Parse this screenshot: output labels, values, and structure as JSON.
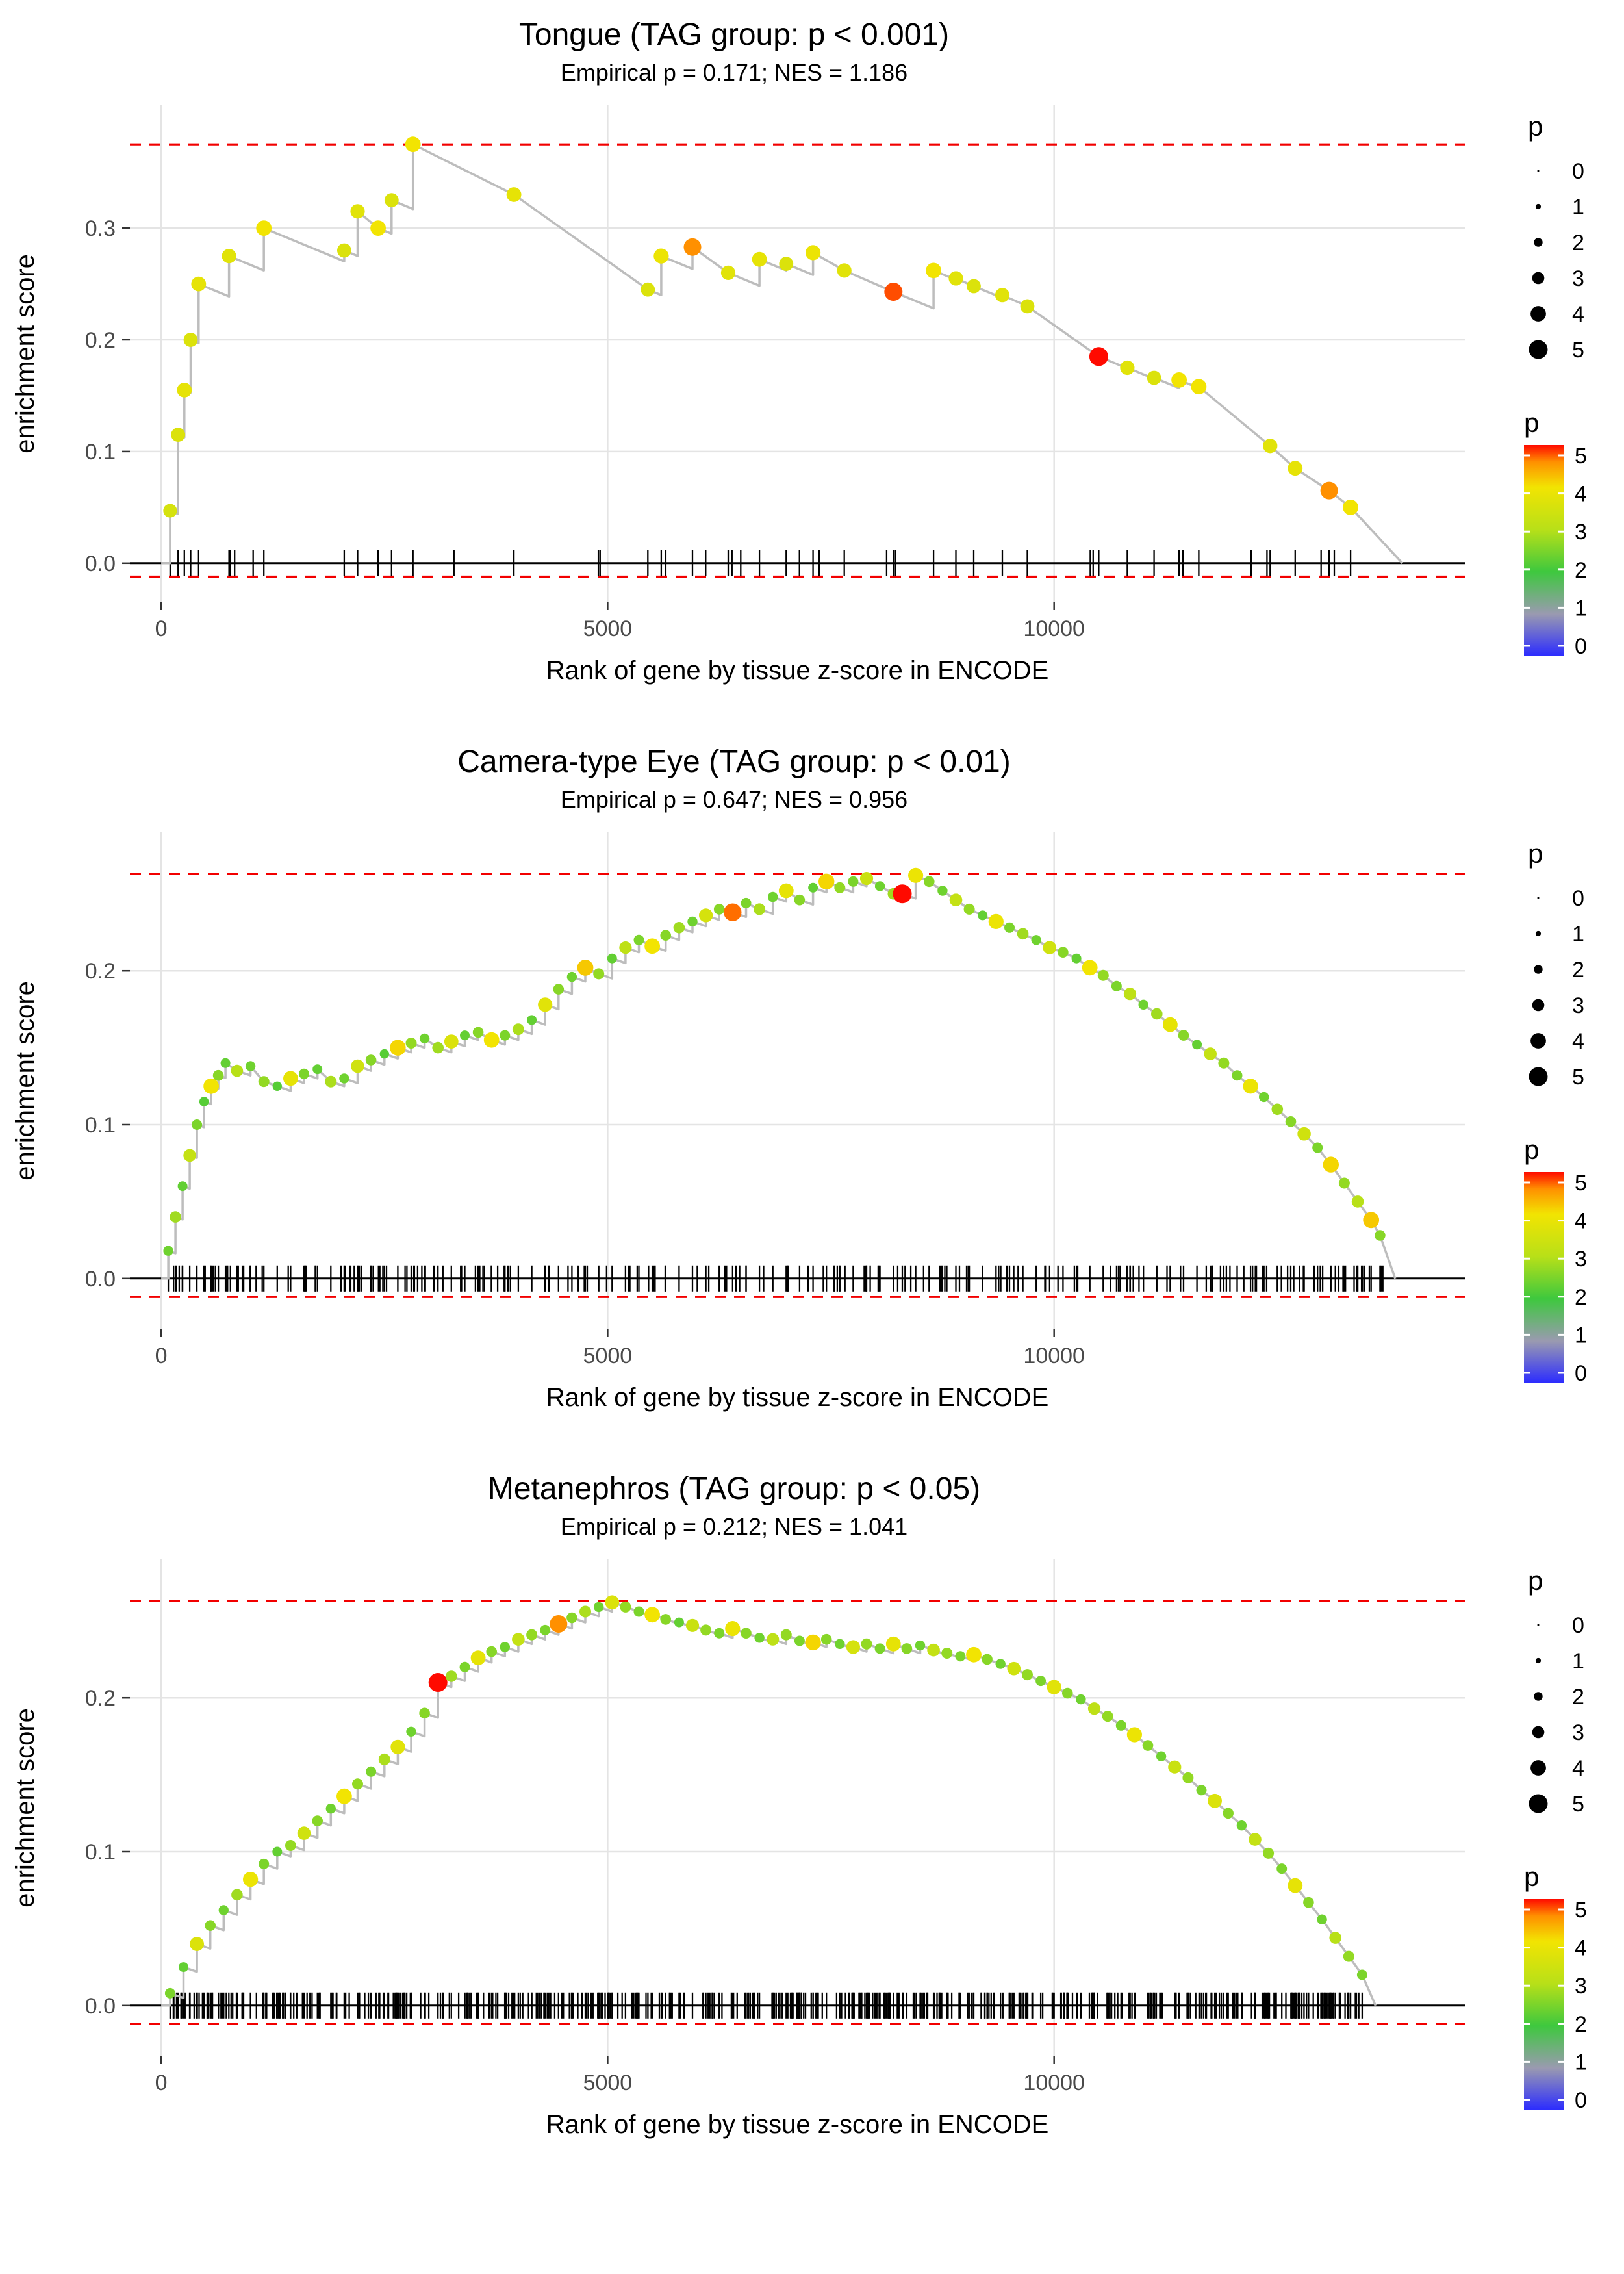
{
  "page": {
    "background": "#ffffff"
  },
  "style_colors": {
    "ref_line": "#f20000",
    "curve": "#bdbdbd",
    "grid": "#e4e4e4",
    "tick_text": "#4a4a4a",
    "rug": "#000000"
  },
  "legend": {
    "size_title": "p",
    "size_values": [
      0,
      1,
      2,
      3,
      4,
      5
    ],
    "size_labels": [
      "0",
      "1",
      "2",
      "3",
      "4",
      "5"
    ],
    "color_title": "p",
    "color_labels": [
      "5",
      "4",
      "3",
      "2",
      "1",
      "0"
    ],
    "gradient_stops": [
      [
        0,
        "#2b2bff"
      ],
      [
        0.2,
        "#9a9ab0"
      ],
      [
        0.4,
        "#3ec83e"
      ],
      [
        0.6,
        "#b8e018"
      ],
      [
        0.8,
        "#f2e402"
      ],
      [
        0.92,
        "#ff9000"
      ],
      [
        1,
        "#ff0a00"
      ]
    ]
  },
  "chart_data": [
    {
      "type": "line",
      "title": "Tongue (TAG group: p < 0.001)",
      "subtitle": "Empirical p = 0.171; NES = 1.186",
      "xlabel": "Rank of gene by tissue z-score in ENCODE",
      "ylabel": "enrichment score",
      "xlim": [
        -350,
        14600
      ],
      "ylim": [
        -0.035,
        0.41
      ],
      "xticks": [
        0,
        5000,
        10000
      ],
      "yticks": [
        0.0,
        0.1,
        0.2,
        0.3
      ],
      "ref_top": 0.375,
      "ref_bottom": -0.012,
      "x_end": 13900,
      "decay_per_rank": 3.3e-05,
      "rug": {
        "count": 22,
        "xmin": 120,
        "xmax": 13350,
        "seed": 7
      },
      "points": [
        [
          100,
          0.047,
          3.5
        ],
        [
          190,
          0.115,
          3.6
        ],
        [
          260,
          0.155,
          3.8
        ],
        [
          330,
          0.2,
          3.6
        ],
        [
          420,
          0.25,
          3.8
        ],
        [
          760,
          0.275,
          3.7
        ],
        [
          1150,
          0.3,
          4.0
        ],
        [
          2050,
          0.28,
          3.6
        ],
        [
          2200,
          0.315,
          3.7
        ],
        [
          2430,
          0.3,
          4.0
        ],
        [
          2580,
          0.325,
          3.6
        ],
        [
          2820,
          0.375,
          4.0
        ],
        [
          3950,
          0.33,
          3.8
        ],
        [
          5450,
          0.245,
          3.6
        ],
        [
          5600,
          0.275,
          3.9
        ],
        [
          5950,
          0.283,
          4.6
        ],
        [
          6350,
          0.26,
          3.7
        ],
        [
          6700,
          0.272,
          3.8
        ],
        [
          7000,
          0.268,
          3.6
        ],
        [
          7300,
          0.278,
          3.9
        ],
        [
          7650,
          0.262,
          3.7
        ],
        [
          8200,
          0.243,
          4.8
        ],
        [
          8650,
          0.262,
          4.0
        ],
        [
          8900,
          0.255,
          3.7
        ],
        [
          9100,
          0.248,
          3.6
        ],
        [
          9420,
          0.24,
          3.7
        ],
        [
          9700,
          0.23,
          3.6
        ],
        [
          10500,
          0.185,
          5.0
        ],
        [
          10820,
          0.175,
          3.7
        ],
        [
          11120,
          0.166,
          3.6
        ],
        [
          11400,
          0.164,
          4.0
        ],
        [
          11620,
          0.158,
          4.0
        ],
        [
          12420,
          0.105,
          3.7
        ],
        [
          12700,
          0.085,
          3.8
        ],
        [
          13080,
          0.065,
          4.6
        ],
        [
          13320,
          0.05,
          4.0
        ]
      ]
    },
    {
      "type": "line",
      "title": "Camera-type Eye (TAG group: p < 0.01)",
      "subtitle": "Empirical p = 0.647; NES = 0.956",
      "xlabel": "Rank of gene by tissue z-score in ENCODE",
      "ylabel": "enrichment score",
      "xlim": [
        -350,
        14600
      ],
      "ylim": [
        -0.033,
        0.29
      ],
      "xticks": [
        0,
        5000,
        10000
      ],
      "yticks": [
        0.0,
        0.1,
        0.2
      ],
      "ref_top": 0.263,
      "ref_bottom": -0.012,
      "x_end": 13820,
      "decay_per_rank": 2e-05,
      "rug": {
        "count": 160,
        "xmin": 80,
        "xmax": 13700,
        "seed": 13
      },
      "points": [
        [
          80,
          0.018,
          2.4
        ],
        [
          160,
          0.04,
          2.8
        ],
        [
          240,
          0.06,
          2.3
        ],
        [
          320,
          0.08,
          3.2
        ],
        [
          400,
          0.1,
          2.5
        ],
        [
          480,
          0.115,
          2.2
        ],
        [
          560,
          0.125,
          4.0
        ],
        [
          640,
          0.132,
          2.6
        ],
        [
          720,
          0.14,
          2.3
        ],
        [
          850,
          0.135,
          3.0
        ],
        [
          1000,
          0.138,
          2.4
        ],
        [
          1150,
          0.128,
          2.7
        ],
        [
          1300,
          0.125,
          2.2
        ],
        [
          1450,
          0.13,
          3.8
        ],
        [
          1600,
          0.133,
          2.5
        ],
        [
          1750,
          0.136,
          2.3
        ],
        [
          1900,
          0.128,
          2.9
        ],
        [
          2050,
          0.13,
          2.4
        ],
        [
          2200,
          0.138,
          3.4
        ],
        [
          2350,
          0.142,
          2.6
        ],
        [
          2500,
          0.146,
          2.2
        ],
        [
          2650,
          0.15,
          4.1
        ],
        [
          2800,
          0.153,
          2.7
        ],
        [
          2950,
          0.156,
          2.4
        ],
        [
          3100,
          0.15,
          2.8
        ],
        [
          3250,
          0.154,
          3.6
        ],
        [
          3400,
          0.158,
          2.3
        ],
        [
          3550,
          0.16,
          2.6
        ],
        [
          3700,
          0.155,
          4.0
        ],
        [
          3850,
          0.158,
          2.5
        ],
        [
          4000,
          0.162,
          2.9
        ],
        [
          4150,
          0.168,
          2.3
        ],
        [
          4300,
          0.178,
          3.7
        ],
        [
          4450,
          0.188,
          2.6
        ],
        [
          4600,
          0.196,
          2.4
        ],
        [
          4750,
          0.202,
          4.2
        ],
        [
          4900,
          0.198,
          2.7
        ],
        [
          5050,
          0.208,
          2.3
        ],
        [
          5200,
          0.215,
          3.1
        ],
        [
          5350,
          0.22,
          2.5
        ],
        [
          5500,
          0.216,
          4.0
        ],
        [
          5650,
          0.223,
          2.6
        ],
        [
          5800,
          0.228,
          2.8
        ],
        [
          5950,
          0.232,
          2.4
        ],
        [
          6100,
          0.236,
          3.5
        ],
        [
          6250,
          0.24,
          2.6
        ],
        [
          6400,
          0.238,
          4.7
        ],
        [
          6550,
          0.244,
          2.5
        ],
        [
          6700,
          0.24,
          2.9
        ],
        [
          6850,
          0.248,
          2.4
        ],
        [
          7000,
          0.252,
          3.8
        ],
        [
          7150,
          0.246,
          2.6
        ],
        [
          7300,
          0.254,
          2.3
        ],
        [
          7450,
          0.258,
          4.1
        ],
        [
          7600,
          0.254,
          2.7
        ],
        [
          7750,
          0.258,
          2.5
        ],
        [
          7900,
          0.26,
          3.3
        ],
        [
          8050,
          0.255,
          2.4
        ],
        [
          8200,
          0.25,
          2.8
        ],
        [
          8300,
          0.25,
          5.0
        ],
        [
          8450,
          0.262,
          3.9
        ],
        [
          8600,
          0.258,
          2.6
        ],
        [
          8750,
          0.252,
          2.4
        ],
        [
          8900,
          0.246,
          3.2
        ],
        [
          9050,
          0.24,
          2.7
        ],
        [
          9200,
          0.236,
          2.3
        ],
        [
          9350,
          0.232,
          3.9
        ],
        [
          9500,
          0.228,
          2.5
        ],
        [
          9650,
          0.224,
          2.8
        ],
        [
          9800,
          0.22,
          2.4
        ],
        [
          9950,
          0.215,
          3.4
        ],
        [
          10100,
          0.212,
          2.6
        ],
        [
          10250,
          0.208,
          2.3
        ],
        [
          10400,
          0.202,
          4.0
        ],
        [
          10550,
          0.197,
          2.7
        ],
        [
          10700,
          0.19,
          2.5
        ],
        [
          10850,
          0.185,
          3.1
        ],
        [
          11000,
          0.178,
          2.4
        ],
        [
          11150,
          0.172,
          2.8
        ],
        [
          11300,
          0.165,
          3.8
        ],
        [
          11450,
          0.158,
          2.6
        ],
        [
          11600,
          0.152,
          2.3
        ],
        [
          11750,
          0.146,
          3.2
        ],
        [
          11900,
          0.14,
          2.7
        ],
        [
          12050,
          0.132,
          2.5
        ],
        [
          12200,
          0.125,
          3.9
        ],
        [
          12350,
          0.118,
          2.4
        ],
        [
          12500,
          0.11,
          2.8
        ],
        [
          12650,
          0.102,
          2.6
        ],
        [
          12800,
          0.094,
          3.4
        ],
        [
          12950,
          0.085,
          2.5
        ],
        [
          13100,
          0.074,
          4.1
        ],
        [
          13250,
          0.062,
          2.7
        ],
        [
          13400,
          0.05,
          3.0
        ],
        [
          13550,
          0.038,
          4.2
        ],
        [
          13650,
          0.028,
          2.6
        ]
      ]
    },
    {
      "type": "line",
      "title": "Metanephros (TAG group: p < 0.05)",
      "subtitle": "Empirical p = 0.212; NES = 1.041",
      "xlabel": "Rank of gene by tissue z-score in ENCODE",
      "ylabel": "enrichment score",
      "xlim": [
        -350,
        14600
      ],
      "ylim": [
        -0.033,
        0.29
      ],
      "xticks": [
        0,
        5000,
        10000
      ],
      "yticks": [
        0.0,
        0.1,
        0.2
      ],
      "ref_top": 0.263,
      "ref_bottom": -0.012,
      "x_end": 13600,
      "decay_per_rank": 2e-05,
      "rug": {
        "count": 430,
        "xmin": 90,
        "xmax": 13600,
        "seed": 29
      },
      "points": [
        [
          100,
          0.008,
          2.5
        ],
        [
          250,
          0.025,
          2.3
        ],
        [
          400,
          0.04,
          3.6
        ],
        [
          550,
          0.052,
          2.6
        ],
        [
          700,
          0.062,
          2.4
        ],
        [
          850,
          0.072,
          2.8
        ],
        [
          1000,
          0.082,
          3.9
        ],
        [
          1150,
          0.092,
          2.5
        ],
        [
          1300,
          0.1,
          2.3
        ],
        [
          1450,
          0.104,
          2.7
        ],
        [
          1600,
          0.112,
          3.4
        ],
        [
          1750,
          0.12,
          2.6
        ],
        [
          1900,
          0.128,
          2.4
        ],
        [
          2050,
          0.136,
          4.0
        ],
        [
          2200,
          0.144,
          2.7
        ],
        [
          2350,
          0.152,
          2.5
        ],
        [
          2500,
          0.16,
          2.9
        ],
        [
          2650,
          0.168,
          3.7
        ],
        [
          2800,
          0.178,
          2.4
        ],
        [
          2950,
          0.19,
          2.6
        ],
        [
          3100,
          0.21,
          5.0
        ],
        [
          3250,
          0.214,
          2.8
        ],
        [
          3400,
          0.22,
          2.5
        ],
        [
          3550,
          0.226,
          3.8
        ],
        [
          3700,
          0.23,
          2.6
        ],
        [
          3850,
          0.233,
          2.4
        ],
        [
          4000,
          0.238,
          3.2
        ],
        [
          4150,
          0.241,
          2.7
        ],
        [
          4300,
          0.244,
          2.5
        ],
        [
          4450,
          0.248,
          4.6
        ],
        [
          4600,
          0.252,
          2.6
        ],
        [
          4750,
          0.256,
          2.9
        ],
        [
          4900,
          0.259,
          2.4
        ],
        [
          5050,
          0.262,
          3.6
        ],
        [
          5200,
          0.259,
          2.7
        ],
        [
          5350,
          0.256,
          2.5
        ],
        [
          5500,
          0.254,
          4.0
        ],
        [
          5650,
          0.251,
          2.6
        ],
        [
          5800,
          0.249,
          2.3
        ],
        [
          5950,
          0.247,
          3.3
        ],
        [
          6100,
          0.244,
          2.7
        ],
        [
          6250,
          0.242,
          2.5
        ],
        [
          6400,
          0.245,
          3.9
        ],
        [
          6550,
          0.242,
          2.6
        ],
        [
          6700,
          0.239,
          2.4
        ],
        [
          6850,
          0.238,
          3.1
        ],
        [
          7000,
          0.241,
          2.7
        ],
        [
          7150,
          0.237,
          2.5
        ],
        [
          7300,
          0.236,
          4.1
        ],
        [
          7450,
          0.238,
          2.6
        ],
        [
          7600,
          0.235,
          2.4
        ],
        [
          7750,
          0.233,
          3.5
        ],
        [
          7900,
          0.235,
          2.7
        ],
        [
          8050,
          0.232,
          2.5
        ],
        [
          8200,
          0.235,
          3.8
        ],
        [
          8350,
          0.232,
          2.6
        ],
        [
          8500,
          0.234,
          2.4
        ],
        [
          8650,
          0.231,
          3.2
        ],
        [
          8800,
          0.229,
          2.7
        ],
        [
          8950,
          0.227,
          2.5
        ],
        [
          9100,
          0.228,
          4.0
        ],
        [
          9250,
          0.225,
          2.6
        ],
        [
          9400,
          0.222,
          2.4
        ],
        [
          9550,
          0.219,
          3.4
        ],
        [
          9700,
          0.215,
          2.7
        ],
        [
          9850,
          0.211,
          2.5
        ],
        [
          10000,
          0.207,
          3.7
        ],
        [
          10150,
          0.203,
          2.6
        ],
        [
          10300,
          0.199,
          2.4
        ],
        [
          10450,
          0.193,
          3.1
        ],
        [
          10600,
          0.188,
          2.7
        ],
        [
          10750,
          0.182,
          2.5
        ],
        [
          10900,
          0.176,
          3.9
        ],
        [
          11050,
          0.169,
          2.6
        ],
        [
          11200,
          0.162,
          2.4
        ],
        [
          11350,
          0.155,
          3.3
        ],
        [
          11500,
          0.148,
          2.7
        ],
        [
          11650,
          0.14,
          2.5
        ],
        [
          11800,
          0.133,
          3.6
        ],
        [
          11950,
          0.125,
          2.6
        ],
        [
          12100,
          0.117,
          2.4
        ],
        [
          12250,
          0.108,
          3.2
        ],
        [
          12400,
          0.099,
          2.7
        ],
        [
          12550,
          0.089,
          2.5
        ],
        [
          12700,
          0.078,
          3.8
        ],
        [
          12850,
          0.067,
          2.6
        ],
        [
          13000,
          0.056,
          2.4
        ],
        [
          13150,
          0.044,
          3.0
        ],
        [
          13300,
          0.032,
          2.7
        ],
        [
          13450,
          0.02,
          2.5
        ]
      ]
    }
  ]
}
